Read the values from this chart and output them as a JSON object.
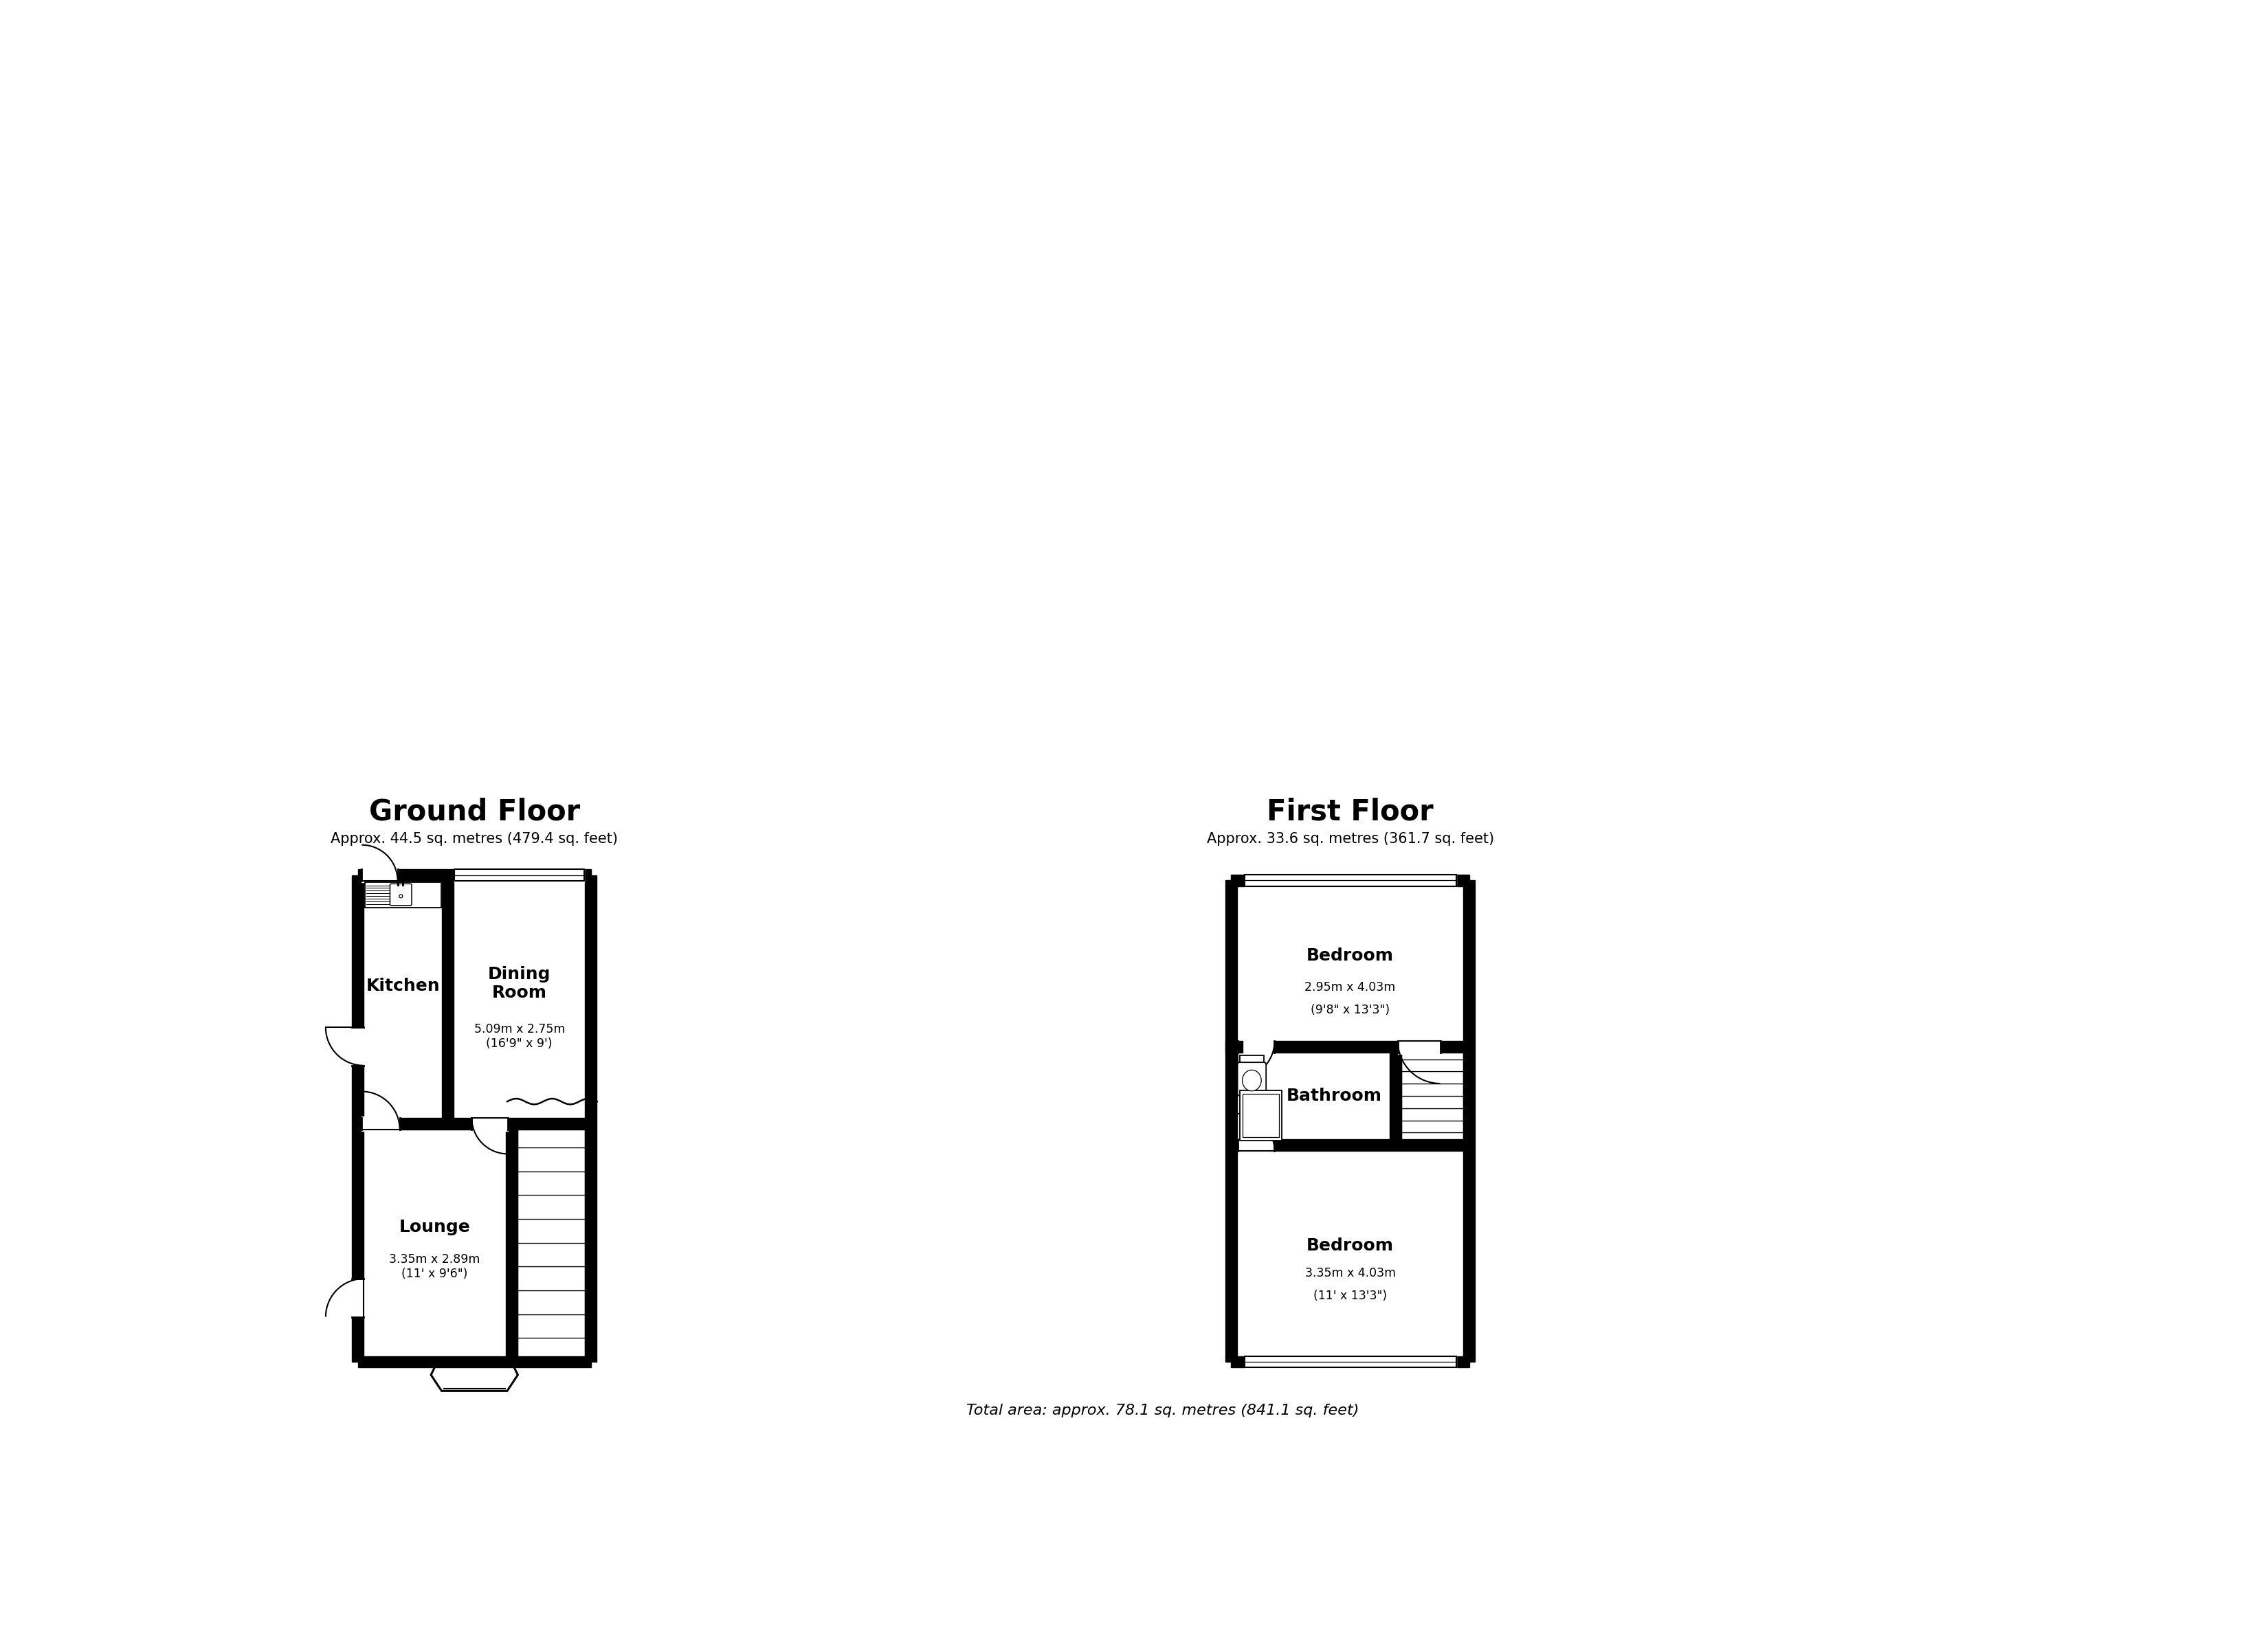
{
  "title_gf": "Ground Floor",
  "subtitle_gf": "Approx. 44.5 sq. metres (479.4 sq. feet)",
  "title_ff": "First Floor",
  "subtitle_ff": "Approx. 33.6 sq. metres (361.7 sq. feet)",
  "footer": "Total area: approx. 78.1 sq. metres (841.1 sq. feet)",
  "bg_color": "#ffffff",
  "gf_kitchen_label": "Kitchen",
  "gf_dining_label": "Dining\nRoom",
  "gf_dining_sub": "5.09m x 2.75m\n(16'9\" x 9')",
  "gf_lounge_label": "Lounge",
  "gf_lounge_sub": "3.35m x 2.89m\n(11' x 9'6\")",
  "ff_bed1_label": "Bedroom",
  "ff_bed1_sub1": "2.95m x 4.03m",
  "ff_bed1_sub2": "(9'8\" x 13'3\")",
  "ff_bath_label": "Bathroom",
  "ff_bed2_label": "Bedroom",
  "ff_bed2_sub1": "3.35m x 4.03m",
  "ff_bed2_sub2": "(11' x 13'3\")"
}
